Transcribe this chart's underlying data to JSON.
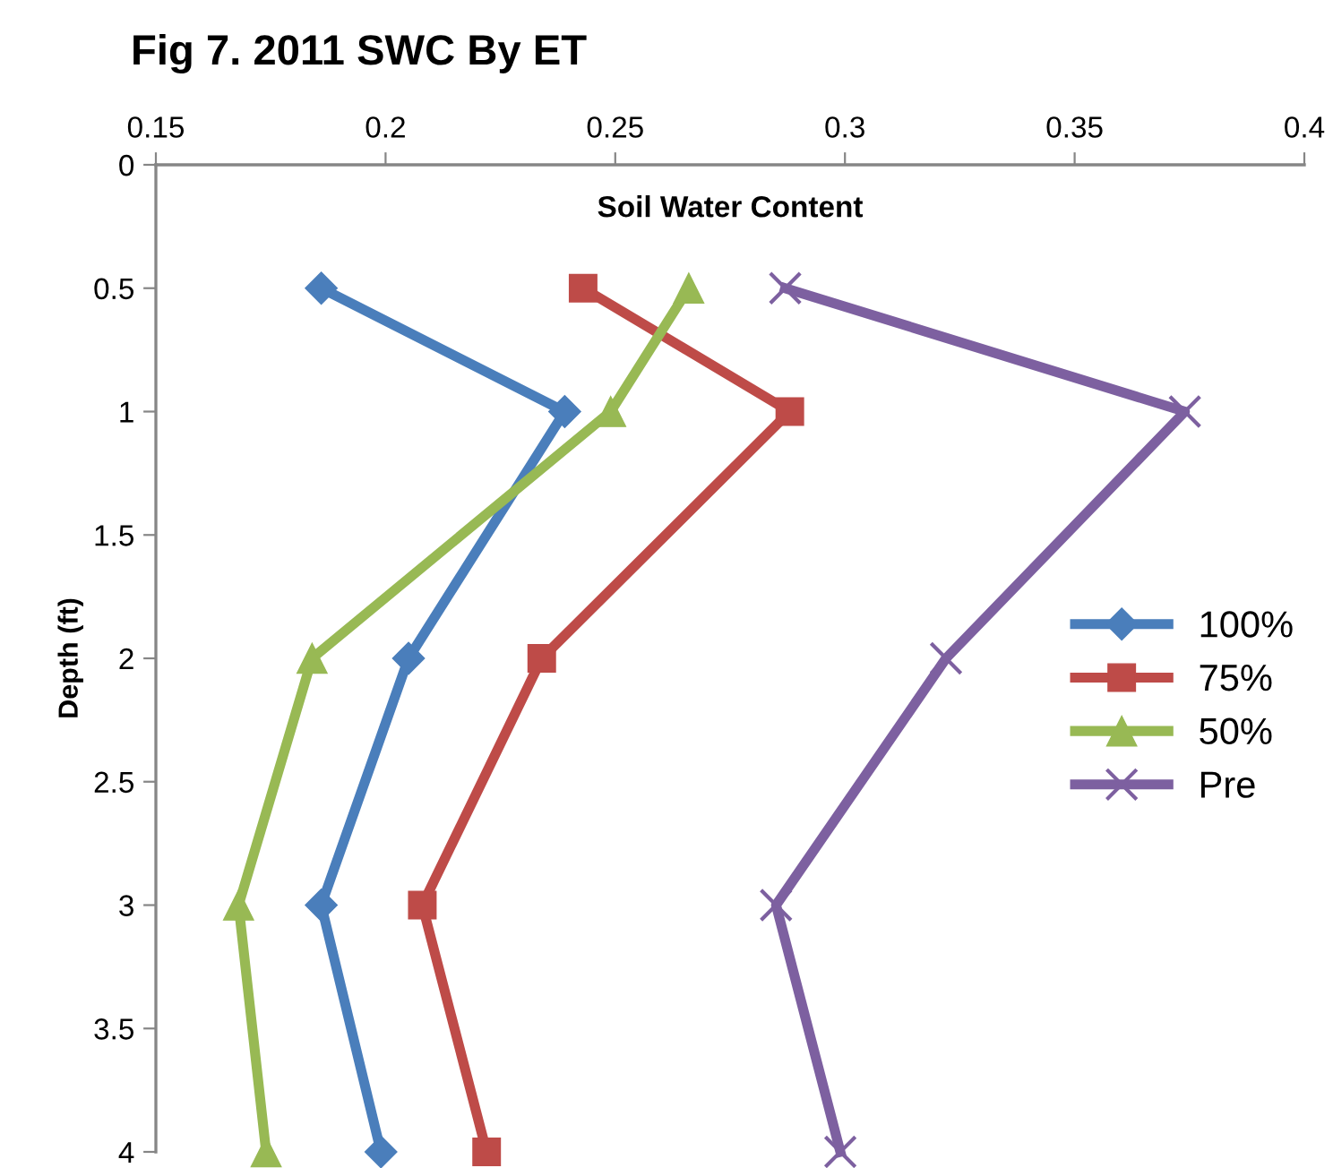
{
  "chart_data": {
    "type": "line",
    "title": "Fig 7. 2011 SWC By ET",
    "xlabel": "Soil Water Content",
    "ylabel": "Depth (ft)",
    "xlim": [
      0.15,
      0.4
    ],
    "xticks": [
      0.15,
      0.2,
      0.25,
      0.3,
      0.35,
      0.4
    ],
    "ylim": [
      4,
      0
    ],
    "yticks": [
      0,
      0.5,
      1,
      1.5,
      2,
      2.5,
      3,
      3.5,
      4
    ],
    "grid": false,
    "legend": "right",
    "line_style": "solid",
    "series": [
      {
        "name": "100%",
        "color": "#4a7ebb",
        "marker": "diamond",
        "x": [
          0.186,
          0.239,
          0.205,
          0.186,
          0.199
        ],
        "values": [
          0.5,
          1,
          2,
          3,
          4
        ]
      },
      {
        "name": "75%",
        "color": "#be4b48",
        "marker": "square",
        "x": [
          0.243,
          0.288,
          0.234,
          0.208,
          0.222
        ],
        "values": [
          0.5,
          1,
          2,
          3,
          4
        ]
      },
      {
        "name": "50%",
        "color": "#98b954",
        "marker": "triangle",
        "x": [
          0.266,
          0.249,
          0.184,
          0.168,
          0.174
        ],
        "values": [
          0.5,
          1,
          2,
          3,
          4
        ]
      },
      {
        "name": "Pre",
        "color": "#7d60a0",
        "marker": "cross",
        "x": [
          0.287,
          0.374,
          0.322,
          0.285,
          0.299
        ],
        "values": [
          0.5,
          1,
          2,
          3,
          4
        ]
      }
    ]
  }
}
